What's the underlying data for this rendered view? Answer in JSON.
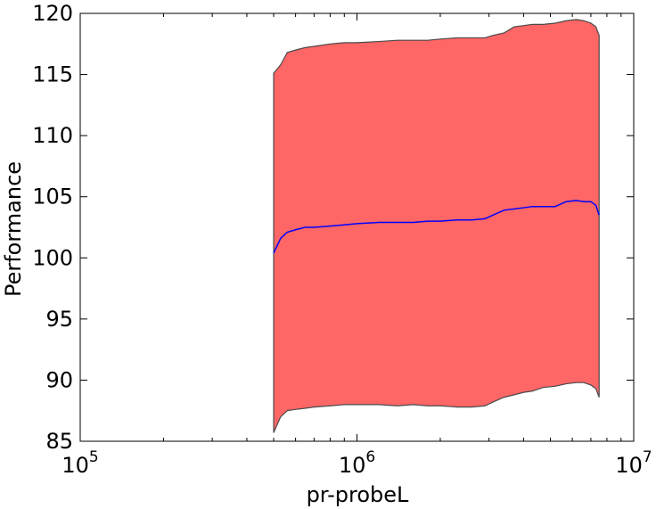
{
  "chart_data": {
    "type": "area",
    "title": "",
    "xlabel": "pr-probeL",
    "ylabel": "Performance",
    "xscale": "log",
    "xlim": [
      100000,
      10000000
    ],
    "ylim": [
      85,
      120
    ],
    "grid": false,
    "x_ticks": [
      {
        "value": 100000,
        "base": "10",
        "exp": "5"
      },
      {
        "value": 1000000,
        "base": "10",
        "exp": "6"
      },
      {
        "value": 10000000,
        "base": "10",
        "exp": "7"
      }
    ],
    "y_ticks": [
      85,
      90,
      95,
      100,
      105,
      110,
      115,
      120
    ],
    "colors": {
      "band_fill": "#ff6666",
      "band_edge": "#4a4a4a",
      "mean_line": "#0000ff"
    },
    "series": [
      {
        "name": "mean",
        "x": [
          500000,
          530000,
          560000,
          600000,
          650000,
          700000,
          800000,
          900000,
          1000000,
          1200000,
          1400000,
          1600000,
          1800000,
          2000000,
          2300000,
          2600000,
          2900000,
          3100000,
          3400000,
          3700000,
          4000000,
          4300000,
          4700000,
          5200000,
          5700000,
          6200000,
          6600000,
          7000000,
          7300000,
          7500000
        ],
        "y": [
          100.4,
          101.6,
          102.1,
          102.3,
          102.5,
          102.5,
          102.6,
          102.7,
          102.8,
          102.9,
          102.9,
          102.9,
          103.0,
          103.0,
          103.1,
          103.1,
          103.2,
          103.5,
          103.9,
          104.0,
          104.1,
          104.2,
          104.2,
          104.2,
          104.6,
          104.7,
          104.6,
          104.6,
          104.3,
          103.5
        ]
      },
      {
        "name": "upper",
        "x": [
          500000,
          530000,
          560000,
          600000,
          650000,
          700000,
          800000,
          900000,
          1000000,
          1200000,
          1400000,
          1600000,
          1800000,
          2000000,
          2300000,
          2600000,
          2900000,
          3100000,
          3400000,
          3700000,
          4000000,
          4300000,
          4700000,
          5200000,
          5700000,
          6200000,
          6600000,
          7000000,
          7300000,
          7500000
        ],
        "y": [
          115.1,
          115.8,
          116.8,
          117.0,
          117.2,
          117.3,
          117.5,
          117.6,
          117.6,
          117.7,
          117.8,
          117.8,
          117.8,
          117.9,
          118.0,
          118.0,
          118.0,
          118.2,
          118.4,
          118.9,
          119.0,
          119.1,
          119.1,
          119.2,
          119.4,
          119.5,
          119.4,
          119.2,
          118.9,
          118.2
        ]
      },
      {
        "name": "lower",
        "x": [
          500000,
          530000,
          560000,
          600000,
          650000,
          700000,
          800000,
          900000,
          1000000,
          1200000,
          1400000,
          1600000,
          1800000,
          2000000,
          2300000,
          2600000,
          2900000,
          3100000,
          3400000,
          3700000,
          4000000,
          4300000,
          4700000,
          5200000,
          5700000,
          6200000,
          6600000,
          7000000,
          7300000,
          7500000
        ],
        "y": [
          85.7,
          87.0,
          87.5,
          87.6,
          87.7,
          87.8,
          87.9,
          88.0,
          88.0,
          88.0,
          87.9,
          88.0,
          87.9,
          87.9,
          87.8,
          87.8,
          87.9,
          88.2,
          88.6,
          88.8,
          89.0,
          89.1,
          89.4,
          89.5,
          89.7,
          89.8,
          89.8,
          89.6,
          89.3,
          88.6
        ]
      }
    ]
  }
}
